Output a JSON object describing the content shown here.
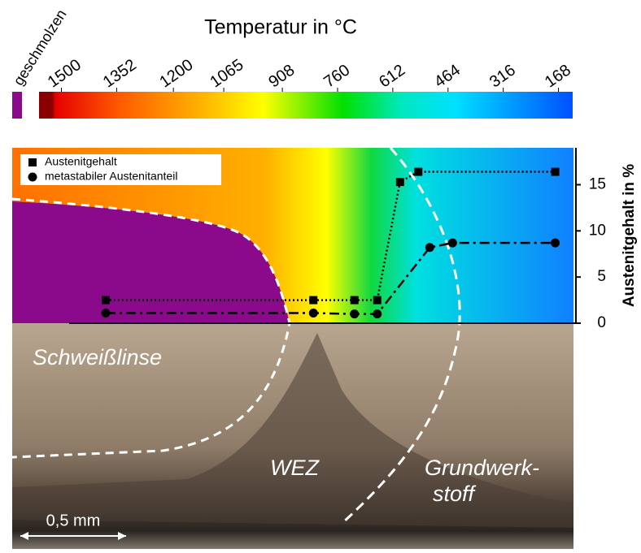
{
  "chart_data": {
    "type": "line",
    "colorbar": {
      "title": "Temperatur in °C",
      "melted_label": "geschmolzen",
      "melted_color": "#8b0a8c",
      "lim": [
        1560,
        130
      ],
      "ticks": [
        1500,
        1352,
        1200,
        1065,
        908,
        760,
        612,
        464,
        316,
        168
      ]
    },
    "ylabel": "Austenitgehalt in %",
    "xlim": [
      0,
      2.46
    ],
    "ylim": [
      0,
      19
    ],
    "yticks": [
      0,
      5,
      10,
      15
    ],
    "series": [
      {
        "name": "Austenitgehalt",
        "color": "#000000",
        "marker": "square",
        "dash": "dotted",
        "x": [
          0.41,
          1.32,
          1.5,
          1.6,
          1.7,
          1.78,
          2.38
        ],
        "values": [
          2.5,
          2.5,
          2.5,
          2.5,
          15.3,
          16.4,
          16.4
        ]
      },
      {
        "name": "metastabiler Austenitanteil",
        "color": "#000000",
        "marker": "circle",
        "dash": "dashed",
        "x": [
          0.41,
          1.32,
          1.5,
          1.6,
          1.83,
          1.93,
          2.38
        ],
        "values": [
          1.1,
          1.1,
          1.0,
          1.0,
          8.2,
          8.7,
          8.7
        ]
      }
    ],
    "annotations": [
      "Schweißlinse",
      "WEZ",
      "Grundwerk-",
      "stoff",
      "0,5 mm"
    ]
  }
}
